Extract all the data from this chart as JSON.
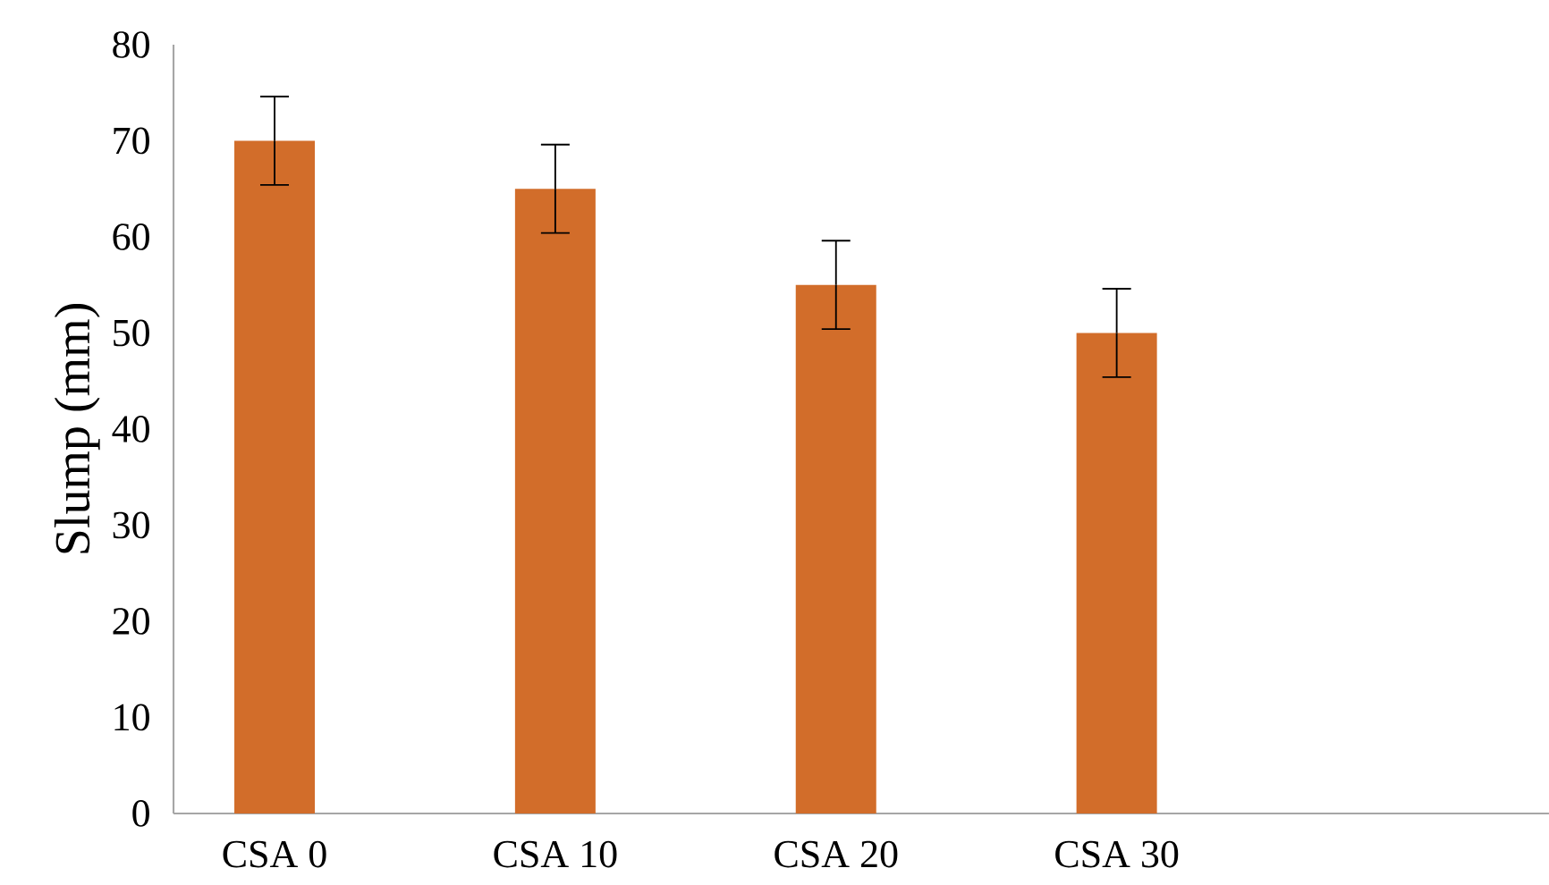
{
  "chart_data": {
    "type": "bar",
    "ylabel": "Slump (mm)",
    "categories": [
      "CSA 0",
      "CSA 10",
      "CSA 20",
      "CSA 30",
      null
    ],
    "values": [
      70,
      65,
      55,
      50,
      null
    ],
    "errors": [
      4.6,
      4.6,
      4.6,
      4.6,
      null
    ],
    "color": "#d26d2a",
    "ylim": [
      0,
      80
    ],
    "yticks": [
      0,
      10,
      20,
      30,
      40,
      50,
      60,
      70,
      80
    ]
  }
}
